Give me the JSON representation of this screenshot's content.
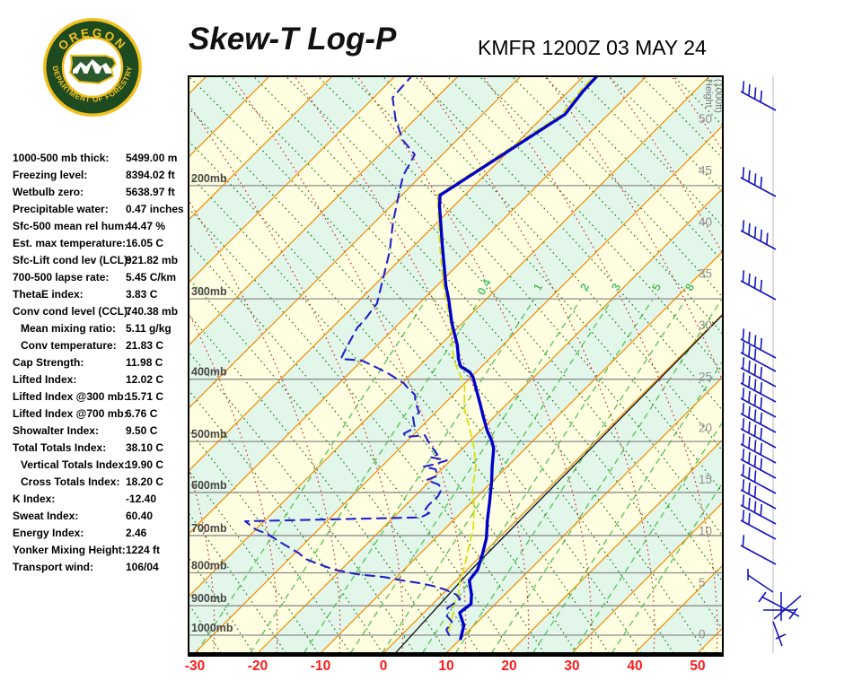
{
  "page": {
    "title": "Skew-T Log-P",
    "station_line": "KMFR 1200Z 03 MAY 24"
  },
  "logo": {
    "org_top": "OREGON",
    "org_bottom": "DEPARTMENT OF FORESTRY",
    "ring_color": "#1d4a21",
    "gold_color": "#f2c11e"
  },
  "stats": {
    "rows": [
      {
        "label": "1000-500 mb thick:",
        "value": "5499.00 m",
        "indent": false
      },
      {
        "label": "Freezing level:",
        "value": "8394.02 ft",
        "indent": false
      },
      {
        "label": "Wetbulb zero:",
        "value": "5638.97 ft",
        "indent": false
      },
      {
        "label": "Precipitable water:",
        "value": "0.47 inches",
        "indent": false
      },
      {
        "label": "Sfc-500 mean rel hum:",
        "value": "44.47 %",
        "indent": false
      },
      {
        "label": "Est. max temperature:",
        "value": "16.05 C",
        "indent": false
      },
      {
        "label": "Sfc-Lift cond lev (LCL):",
        "value": "921.82 mb",
        "indent": false
      },
      {
        "label": "700-500 lapse rate:",
        "value": "5.45 C/km",
        "indent": false
      },
      {
        "label": "ThetaE index:",
        "value": "3.83 C",
        "indent": false
      },
      {
        "label": "Conv cond level (CCL):",
        "value": "740.38 mb",
        "indent": false
      },
      {
        "label": "Mean mixing ratio:",
        "value": "5.11 g/kg",
        "indent": true
      },
      {
        "label": "Conv temperature:",
        "value": "21.83 C",
        "indent": true
      },
      {
        "label": "Cap Strength:",
        "value": "11.98 C",
        "indent": false
      },
      {
        "label": "Lifted Index:",
        "value": "12.02 C",
        "indent": false
      },
      {
        "label": "Lifted Index @300 mb:",
        "value": "15.71 C",
        "indent": false
      },
      {
        "label": "Lifted Index @700 mb:",
        "value": "6.76 C",
        "indent": false
      },
      {
        "label": "Showalter Index:",
        "value": "9.50 C",
        "indent": false
      },
      {
        "label": "Total Totals Index:",
        "value": "38.10 C",
        "indent": false
      },
      {
        "label": "Vertical Totals Index:",
        "value": "19.90 C",
        "indent": true
      },
      {
        "label": "Cross Totals Index:",
        "value": "18.20 C",
        "indent": true
      },
      {
        "label": "K Index:",
        "value": "-12.40",
        "indent": false
      },
      {
        "label": "Sweat Index:",
        "value": "60.40",
        "indent": false
      },
      {
        "label": "Energy Index:",
        "value": "2.46",
        "indent": false
      },
      {
        "label": "Yonker Mixing Height:",
        "value": "1224 ft",
        "indent": false
      },
      {
        "label": "Transport wind:",
        "value": "106/04",
        "indent": false
      }
    ]
  },
  "chart_data": {
    "type": "line",
    "title": "Skew-T Log-P",
    "station": "KMFR",
    "valid_time": "1200Z 03 MAY 24",
    "x_axis": {
      "ticks_c": [
        -30,
        -20,
        -10,
        0,
        10,
        20,
        30,
        40,
        50
      ],
      "color": "#ff0000"
    },
    "pressure_axis": {
      "ticks_mb": [
        200,
        300,
        400,
        500,
        600,
        700,
        800,
        900,
        1000
      ],
      "suffix": "mb"
    },
    "height_axis": {
      "title_line1": "Height",
      "title_line2": "(1000ft)",
      "ticks_kft": [
        50,
        45,
        40,
        35,
        30,
        25,
        20,
        15,
        10,
        5,
        0
      ]
    },
    "mixing_ratio_lines": {
      "labeled": [
        {
          "value": "0.4",
          "x_anchor": 543
        },
        {
          "value": "1",
          "x_anchor": 603
        },
        {
          "value": "2",
          "x_anchor": 655
        },
        {
          "value": "3",
          "x_anchor": 690
        },
        {
          "value": "5",
          "x_anchor": 735
        },
        {
          "value": "8",
          "x_anchor": 772
        }
      ],
      "unlabeled_x_anchor": [
        483,
        812,
        858,
        902,
        946
      ]
    },
    "series": [
      {
        "name": "temperature",
        "color": "#0000cc",
        "style": "solid",
        "width": 3.4,
        "points_p_t": [
          [
            1013,
            10.0
          ],
          [
            966,
            8.4
          ],
          [
            923,
            5.7
          ],
          [
            894,
            6.1
          ],
          [
            865,
            4.7
          ],
          [
            822,
            2.1
          ],
          [
            791,
            1.7
          ],
          [
            746,
            -0.1
          ],
          [
            707,
            -1.9
          ],
          [
            663,
            -4.6
          ],
          [
            622,
            -7.1
          ],
          [
            577,
            -10.1
          ],
          [
            547,
            -12.4
          ],
          [
            513,
            -15.0
          ],
          [
            500,
            -16.4
          ],
          [
            481,
            -18.9
          ],
          [
            458,
            -21.7
          ],
          [
            437,
            -24.3
          ],
          [
            412,
            -27.6
          ],
          [
            397,
            -29.7
          ],
          [
            390,
            -31.0
          ],
          [
            382,
            -33.4
          ],
          [
            372,
            -34.9
          ],
          [
            354,
            -37.3
          ],
          [
            327,
            -41.7
          ],
          [
            302,
            -45.7
          ],
          [
            286,
            -48.6
          ],
          [
            247,
            -55.7
          ],
          [
            215,
            -62.3
          ],
          [
            207,
            -63.9
          ],
          [
            155,
            -56.9
          ],
          [
            143,
            -57.7
          ],
          [
            135,
            -57.9
          ]
        ]
      },
      {
        "name": "dewpoint",
        "color": "#2222cc",
        "style": "dashed",
        "width": 2.1,
        "points_p_t": [
          [
            1000,
            7.6
          ],
          [
            981,
            6.3
          ],
          [
            953,
            5.9
          ],
          [
            935,
            4.3
          ],
          [
            908,
            3.0
          ],
          [
            879,
            3.6
          ],
          [
            865,
            2.3
          ],
          [
            849,
            -0.4
          ],
          [
            838,
            -2.9
          ],
          [
            830,
            -5.3
          ],
          [
            822,
            -8.6
          ],
          [
            812,
            -12.0
          ],
          [
            804,
            -16.7
          ],
          [
            791,
            -21.1
          ],
          [
            773,
            -25.0
          ],
          [
            761,
            -27.4
          ],
          [
            746,
            -29.3
          ],
          [
            718,
            -33.9
          ],
          [
            696,
            -37.4
          ],
          [
            685,
            -40.0
          ],
          [
            665,
            -43.0
          ],
          [
            656,
            -15.7
          ],
          [
            646,
            -15.0
          ],
          [
            642,
            -16.1
          ],
          [
            628,
            -16.4
          ],
          [
            608,
            -16.3
          ],
          [
            592,
            -16.9
          ],
          [
            583,
            -18.1
          ],
          [
            574,
            -20.7
          ],
          [
            565,
            -19.6
          ],
          [
            552,
            -21.0
          ],
          [
            547,
            -23.3
          ],
          [
            543,
            -22.1
          ],
          [
            535,
            -20.6
          ],
          [
            529,
            -23.6
          ],
          [
            524,
            -23.0
          ],
          [
            508,
            -25.4
          ],
          [
            501,
            -26.4
          ],
          [
            489,
            -28.1
          ],
          [
            492,
            -30.9
          ],
          [
            486,
            -31.7
          ],
          [
            476,
            -30.9
          ],
          [
            458,
            -32.9
          ],
          [
            451,
            -32.6
          ],
          [
            434,
            -34.9
          ],
          [
            423,
            -36.1
          ],
          [
            411,
            -38.7
          ],
          [
            406,
            -39.7
          ],
          [
            393,
            -43.4
          ],
          [
            384,
            -46.4
          ],
          [
            374,
            -50.1
          ],
          [
            372,
            -53.6
          ],
          [
            366,
            -54.0
          ],
          [
            349,
            -55.0
          ],
          [
            332,
            -56.0
          ],
          [
            325,
            -56.0
          ],
          [
            305,
            -56.7
          ],
          [
            274,
            -60.3
          ],
          [
            253,
            -63.0
          ],
          [
            228,
            -67.1
          ],
          [
            204,
            -71.0
          ],
          [
            193,
            -72.9
          ],
          [
            179,
            -74.4
          ],
          [
            170,
            -78.6
          ],
          [
            158,
            -83.0
          ],
          [
            146,
            -87.0
          ],
          [
            135,
            -87.4
          ]
        ]
      },
      {
        "name": "wet_bulb",
        "color": "#dede00",
        "style": "dashed",
        "width": 1.7,
        "points_p_t": [
          [
            984,
            6.9
          ],
          [
            953,
            5.7
          ],
          [
            923,
            4.7
          ],
          [
            894,
            3.3
          ],
          [
            865,
            2.6
          ],
          [
            822,
            0.6
          ],
          [
            804,
            0.0
          ],
          [
            777,
            -1.1
          ],
          [
            730,
            -3.3
          ],
          [
            685,
            -5.4
          ],
          [
            628,
            -9.1
          ],
          [
            592,
            -12.0
          ],
          [
            547,
            -15.0
          ],
          [
            513,
            -18.1
          ],
          [
            481,
            -21.6
          ],
          [
            444,
            -26.1
          ],
          [
            410,
            -29.6
          ],
          [
            372,
            -35.7
          ],
          [
            327,
            -41.9
          ],
          [
            286,
            -49.0
          ],
          [
            247,
            -56.1
          ],
          [
            207,
            -64.3
          ],
          [
            155,
            -57.4
          ],
          [
            143,
            -58.2
          ],
          [
            135,
            -58.4
          ]
        ]
      },
      {
        "name": "freezing_reference",
        "color": "#111111",
        "style": "solid",
        "width": 1.3,
        "points_p_t": [
          [
            1066,
            1.9
          ],
          [
            791,
            0.7
          ],
          [
            411,
            0.3
          ],
          [
            318,
            0.1
          ]
        ]
      }
    ],
    "wind_barbs": {
      "color": "#1515bb",
      "upper": [
        {
          "y": 122,
          "ticks": 4
        },
        {
          "y": 218,
          "ticks": 4
        },
        {
          "y": 277,
          "ticks": 5
        },
        {
          "y": 333,
          "ticks": 4
        },
        {
          "y": 398,
          "ticks": 4
        },
        {
          "y": 413,
          "ticks": 3
        },
        {
          "y": 430,
          "ticks": 4
        },
        {
          "y": 447,
          "ticks": 4
        },
        {
          "y": 464,
          "ticks": 4
        },
        {
          "y": 481,
          "ticks": 4
        },
        {
          "y": 498,
          "ticks": 4
        },
        {
          "y": 515,
          "ticks": 4
        },
        {
          "y": 532,
          "ticks": 4
        },
        {
          "y": 549,
          "ticks": 3
        },
        {
          "y": 566,
          "ticks": 3
        },
        {
          "y": 583,
          "ticks": 4
        },
        {
          "y": 600,
          "ticks": 2
        },
        {
          "y": 628,
          "ticks": 1
        }
      ],
      "surface_segments": [
        [
          833,
          634,
          833,
          647
        ],
        [
          833,
          641,
          861,
          660
        ],
        [
          848,
          665,
          890,
          687
        ],
        [
          892,
          664,
          862,
          690
        ],
        [
          850,
          680,
          887,
          680
        ],
        [
          870,
          660,
          870,
          692
        ],
        [
          845,
          671,
          853,
          660
        ],
        [
          879,
          690,
          888,
          678
        ],
        [
          861,
          693,
          871,
          720
        ],
        [
          864,
          712,
          875,
          707
        ]
      ]
    },
    "colors": {
      "band_yellow": "#fffee0",
      "band_green": "#e3f6ea",
      "isotherm": "#ef8c00",
      "dry_adiabat": "#1e7d1e",
      "moist_adiabat": "#d03030",
      "mixing_ratio": "#52c455",
      "grid": "#8c8c8c",
      "border": "#000000",
      "pressure_label": "#454545",
      "height_label": "#8f8f8f",
      "x_label": "#ff1a1a",
      "barb_axis": "#dcdcdc"
    }
  }
}
